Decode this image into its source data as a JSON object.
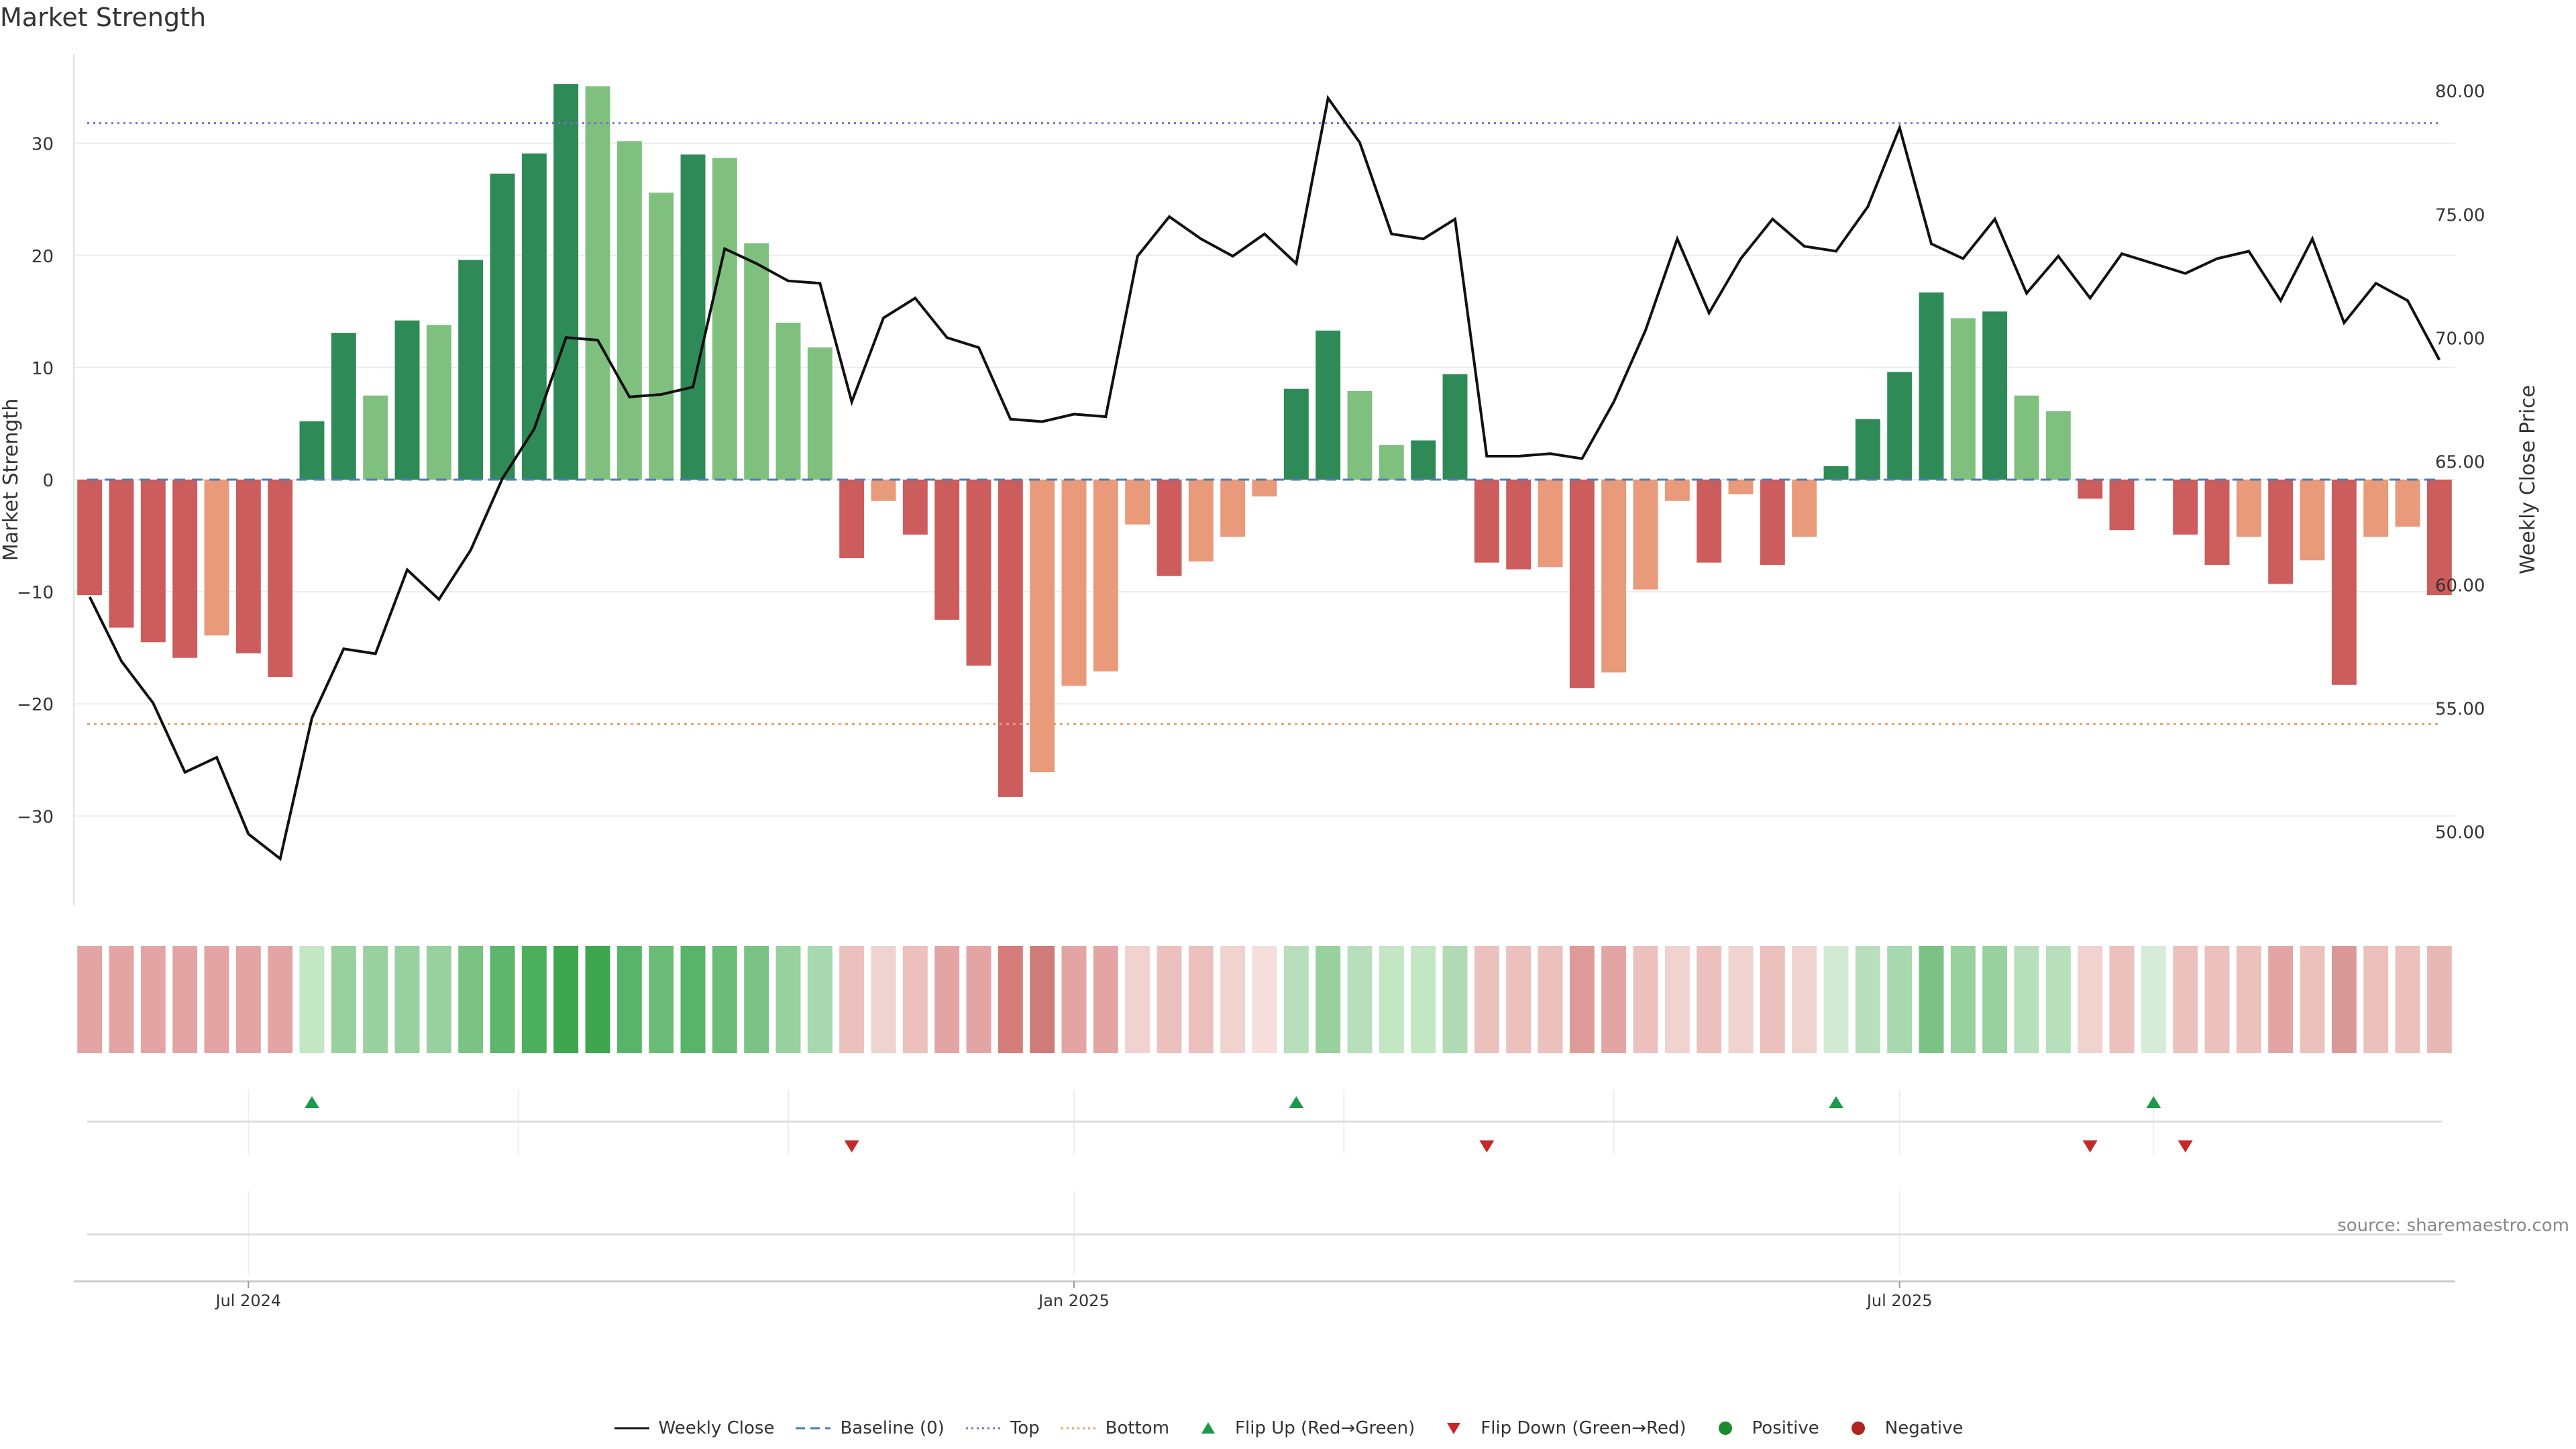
{
  "title": "Market Strength",
  "source": "source: sharemaestro.com",
  "colors": {
    "strong_green": "#2e8b57",
    "light_green": "#7fc07f",
    "strong_red": "#cd5c5c",
    "light_red": "#e89a7a",
    "close_line": "#111111",
    "baseline": "#4a7fb5",
    "top": "#7b6fd1",
    "bottom": "#e8a060",
    "flip_up": "#1a9a4a",
    "flip_down": "#c62828",
    "positive": "#1e8a30",
    "negative": "#b22222"
  },
  "legend": [
    {
      "key": "close",
      "label": "Weekly Close",
      "icon": "solid-line"
    },
    {
      "key": "baseline",
      "label": "Baseline (0)",
      "icon": "dashed-line"
    },
    {
      "key": "top",
      "label": "Top",
      "icon": "dotted-line"
    },
    {
      "key": "bottom",
      "label": "Bottom",
      "icon": "dotted-line"
    },
    {
      "key": "flip_up",
      "label": "Flip Up (Red→Green)",
      "icon": "triangle-up"
    },
    {
      "key": "flip_down",
      "label": "Flip Down (Green→Red)",
      "icon": "triangle-down"
    },
    {
      "key": "positive",
      "label": "Positive",
      "icon": "circle"
    },
    {
      "key": "negative",
      "label": "Negative",
      "icon": "circle"
    }
  ],
  "chart_data": {
    "type": "bar",
    "ylabel": "Market Strength",
    "y2label": "Weekly Close Price",
    "ylim": [
      -38,
      38
    ],
    "y2lim": [
      47.0,
      81.5
    ],
    "yticks": [
      -30,
      -20,
      -10,
      0,
      10,
      20,
      30
    ],
    "y2ticks": [
      50,
      55,
      60,
      65,
      70,
      75,
      80
    ],
    "y2tick_labels": [
      "50.00",
      "55.00",
      "60.00",
      "65.00",
      "70.00",
      "75.00",
      "80.00"
    ],
    "xticks": [
      {
        "index": 5,
        "label": "Jul 2024"
      },
      {
        "index": 31,
        "label": "Jan 2025"
      },
      {
        "index": 57,
        "label": "Jul 2025"
      }
    ],
    "top_line": 31.8,
    "bottom_line": -21.8,
    "baseline": 0,
    "strength": [
      -10.3,
      -13.2,
      -14.5,
      -15.9,
      -13.9,
      -15.5,
      -17.6,
      5.2,
      13.1,
      7.5,
      14.2,
      13.8,
      19.6,
      27.3,
      29.1,
      35.3,
      35.1,
      30.2,
      25.6,
      29.0,
      28.7,
      21.1,
      14.0,
      11.8,
      -7.0,
      -1.9,
      -4.9,
      -12.5,
      -16.6,
      -28.3,
      -26.1,
      -18.4,
      -17.1,
      -4.0,
      -8.6,
      -7.3,
      -5.1,
      -1.5,
      8.1,
      13.3,
      7.9,
      3.1,
      3.5,
      9.4,
      -7.4,
      -8.0,
      -7.8,
      -18.6,
      -17.2,
      -9.8,
      -1.9,
      -7.4,
      -1.3,
      -7.6,
      -5.1,
      1.2,
      5.4,
      9.6,
      16.7,
      14.4,
      15.0,
      7.5,
      6.1,
      -1.7,
      -4.5,
      0,
      -4.9,
      -7.6,
      -5.1,
      -9.3,
      -7.2,
      -18.3,
      -5.1,
      -4.2,
      -10.3
    ],
    "bar_shade": [
      "strong",
      "strong",
      "strong",
      "strong",
      "light",
      "strong",
      "strong",
      "strong",
      "strong",
      "light",
      "strong",
      "light",
      "strong",
      "strong",
      "strong",
      "strong",
      "light",
      "light",
      "light",
      "strong",
      "light",
      "light",
      "light",
      "light",
      "strong",
      "light",
      "strong",
      "strong",
      "strong",
      "strong",
      "light",
      "light",
      "light",
      "light",
      "strong",
      "light",
      "light",
      "light",
      "strong",
      "strong",
      "light",
      "light",
      "strong",
      "strong",
      "strong",
      "strong",
      "light",
      "strong",
      "light",
      "light",
      "light",
      "strong",
      "light",
      "strong",
      "light",
      "strong",
      "strong",
      "strong",
      "strong",
      "light",
      "strong",
      "light",
      "light",
      "strong",
      "strong",
      "light",
      "strong",
      "strong",
      "light",
      "strong",
      "light",
      "strong",
      "light",
      "light",
      "strong"
    ],
    "close": [
      59.5,
      56.9,
      55.2,
      52.4,
      53.0,
      49.9,
      48.9,
      54.6,
      57.4,
      57.2,
      60.6,
      59.4,
      61.4,
      64.3,
      66.3,
      70.0,
      69.9,
      67.6,
      67.7,
      68.0,
      73.6,
      73.0,
      72.3,
      72.2,
      67.4,
      70.8,
      71.6,
      70.0,
      69.6,
      66.7,
      66.6,
      66.9,
      66.8,
      73.3,
      74.9,
      74.0,
      73.3,
      74.2,
      73.0,
      79.7,
      77.9,
      74.2,
      74.0,
      74.8,
      65.2,
      65.2,
      65.3,
      65.1,
      67.4,
      70.3,
      74.0,
      71.0,
      73.2,
      74.8,
      73.7,
      73.5,
      75.3,
      78.5,
      73.8,
      73.2,
      74.8,
      71.8,
      73.3,
      71.6,
      73.4,
      73.0,
      72.6,
      73.2,
      73.5,
      71.5,
      74.0,
      70.6,
      72.2,
      71.5,
      69.1
    ],
    "heat_colors": [
      "#e3a5a3",
      "#e3a5a3",
      "#e3a5a3",
      "#e3a5a3",
      "#e3a5a3",
      "#e3a5a3",
      "#e3a5a3",
      "#c3e6c3",
      "#98d09e",
      "#98d09e",
      "#98d09e",
      "#98d09e",
      "#7ac384",
      "#5eb56c",
      "#4caf5c",
      "#3fa650",
      "#3fa650",
      "#58b468",
      "#6bbc77",
      "#58b468",
      "#6bbc77",
      "#7ac384",
      "#98d09e",
      "#a8d8ad",
      "#ebc0bd",
      "#f0d2cf",
      "#ebc0bd",
      "#e3a5a3",
      "#e3a5a3",
      "#d47d79",
      "#cf7c78",
      "#e3a5a3",
      "#e3a5a3",
      "#f0d2cf",
      "#ebc0bd",
      "#ebc0bd",
      "#f0d2cf",
      "#f5dedb",
      "#b7dfbb",
      "#98d09e",
      "#b7dfbb",
      "#c3e6c3",
      "#c3e6c3",
      "#b0dbb4",
      "#ebc0bd",
      "#ebc0bd",
      "#ebc0bd",
      "#dd9c98",
      "#e3a5a3",
      "#ebc0bd",
      "#f0d2cf",
      "#ebc0bd",
      "#f0d2cf",
      "#ebc0bd",
      "#f0d2cf",
      "#d0ebd2",
      "#b7dfbb",
      "#a8d8ad",
      "#7ac384",
      "#98d09e",
      "#98d09e",
      "#b7dfbb",
      "#b7dfbb",
      "#f0d2cf",
      "#ebc0bd",
      "#d6ecd8",
      "#ebc0bd",
      "#ebc0bd",
      "#ebc0bd",
      "#e3a5a3",
      "#ebc0bd",
      "#d99a97",
      "#ebc0bd",
      "#ebc0bd",
      "#e8b8b5"
    ],
    "flip_up": [
      7,
      38,
      55,
      65
    ],
    "flip_down": [
      24,
      44,
      63,
      66
    ]
  }
}
